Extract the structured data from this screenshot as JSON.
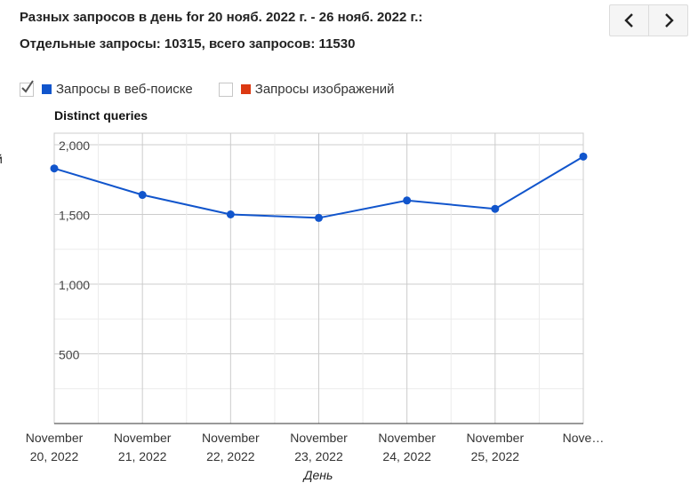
{
  "header": {
    "title": "Разных запросов в день for 20 нояб. 2022 г. - 26 нояб. 2022 г.:",
    "subtitle": "Отдельные запросы: 10315, всего запросов: 11530"
  },
  "nav": {
    "prev_icon": "chevron-left-icon",
    "next_icon": "chevron-right-icon"
  },
  "legend": {
    "items": [
      {
        "label": "Запросы в веб-поиске",
        "checked": true,
        "color": "#1155cc"
      },
      {
        "label": "Запросы изображений",
        "checked": false,
        "color": "#dc3912"
      }
    ]
  },
  "edge_text": "й",
  "chart_data": {
    "type": "line",
    "title": "Distinct queries",
    "xlabel": "День",
    "ylabel": "",
    "categories": [
      [
        "November",
        "20, 2022"
      ],
      [
        "November",
        "21, 2022"
      ],
      [
        "November",
        "22, 2022"
      ],
      [
        "November",
        "23, 2022"
      ],
      [
        "November",
        "24, 2022"
      ],
      [
        "November",
        "25, 2022"
      ],
      [
        "Nove…",
        ""
      ]
    ],
    "series": [
      {
        "name": "Запросы в веб-поиске",
        "color": "#1155cc",
        "values": [
          1830,
          1640,
          1500,
          1475,
          1600,
          1540,
          1915
        ]
      }
    ],
    "ylim": [
      0,
      2000
    ],
    "yticks": [
      500,
      1000,
      1500,
      2000
    ],
    "ytick_labels": [
      "500",
      "1,000",
      "1,500",
      "2,000"
    ],
    "grid": true,
    "legend_position": "top"
  }
}
